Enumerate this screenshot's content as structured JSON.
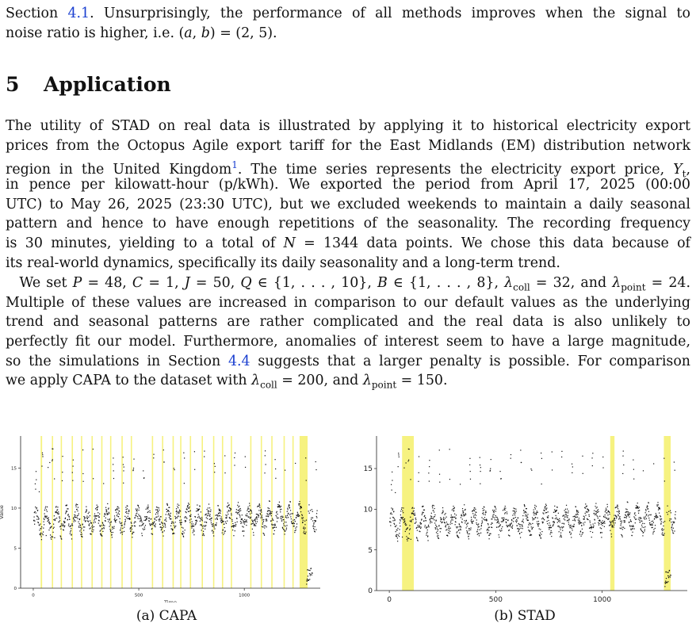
{
  "intro_lines": [
    [
      "Section ",
      {
        "ref": "4.1"
      },
      ". Unsurprisingly, the performance of all methods improves when the signal to"
    ],
    [
      "noise ratio is higher, i.e. (",
      {
        "v": "a"
      },
      ", ",
      {
        "v": "b"
      },
      ") = (2, 5)."
    ]
  ],
  "section": {
    "number": "5",
    "title": "Application"
  },
  "para1_lines": [
    [
      "The utility of STAD on real data is illustrated by applying it to historical electricity export"
    ],
    [
      "prices from the Octopus Agile export tariff for the East Midlands (EM) distribution network"
    ],
    [
      "region in the United Kingdom",
      {
        "sup": "1"
      },
      ". The time series represents the electricity export price, ",
      {
        "v": "Y"
      },
      {
        "sub": "t"
      },
      ","
    ],
    [
      "in pence per kilowatt-hour (p/kWh).  We exported the period from April 17, 2025 (00:00"
    ],
    [
      "UTC) to May 26, 2025 (23:30 UTC), but we excluded weekends to maintain a daily seasonal"
    ],
    [
      "pattern and hence to have enough repetitions of the seasonality.  The recording frequency"
    ],
    [
      "is 30 minutes, yielding to a total of ",
      {
        "v": "N"
      },
      " = 1344 data points.  We chose this data because of"
    ],
    [
      "its real-world dynamics, specifically its daily seasonality and a long-term trend."
    ]
  ],
  "para2_lines": [
    [
      " We set ",
      {
        "v": "P"
      },
      " = 48, ",
      {
        "v": "C"
      },
      " = 1, ",
      {
        "v": "J"
      },
      " = 50, ",
      {
        "v": "Q"
      },
      " ∈ {1, . . . , 10}, ",
      {
        "v": "B"
      },
      " ∈ {1, . . . , 8}, ",
      {
        "v": "λ"
      },
      {
        "sub": "coll"
      },
      " = 32, and ",
      {
        "v": "λ"
      },
      {
        "sub": "point"
      },
      " = 24."
    ],
    [
      "Multiple of these values are increased in comparison to our default values as the underlying"
    ],
    [
      "trend and seasonal patterns are rather complicated and the real data is also unlikely to"
    ],
    [
      "perfectly fit our model. Furthermore, anomalies of interest seem to have a large magnitude,"
    ],
    [
      "so the simulations in Section ",
      {
        "ref": "4.4"
      },
      " suggests that a larger penalty is possible. For comparison"
    ],
    [
      "we apply CAPA to the dataset with ",
      {
        "v": "λ"
      },
      {
        "sub": "coll"
      },
      " = 200, and ",
      {
        "v": "λ"
      },
      {
        "sub": "point"
      },
      " = 150."
    ]
  ],
  "figures": [
    {
      "caption": "(a) CAPA",
      "xlabel": "Time",
      "ylabel": "Value",
      "xticks": [
        0,
        500,
        1000
      ],
      "yticks": [
        0,
        5,
        10,
        15
      ],
      "xlim": [
        -60,
        1360
      ],
      "ylim": [
        0,
        19
      ],
      "highlight_color": "#f5f06a",
      "highlights": [
        [
          35,
          42
        ],
        [
          88,
          94
        ],
        [
          130,
          136
        ],
        [
          182,
          188
        ],
        [
          226,
          232
        ],
        [
          276,
          282
        ],
        [
          322,
          328
        ],
        [
          364,
          370
        ],
        [
          418,
          424
        ],
        [
          462,
          468
        ],
        [
          562,
          568
        ],
        [
          610,
          616
        ],
        [
          660,
          666
        ],
        [
          696,
          702
        ],
        [
          742,
          748
        ],
        [
          798,
          804
        ],
        [
          852,
          858
        ],
        [
          894,
          900
        ],
        [
          936,
          942
        ],
        [
          1028,
          1034
        ],
        [
          1078,
          1084
        ],
        [
          1128,
          1134
        ],
        [
          1186,
          1192
        ],
        [
          1228,
          1234
        ],
        [
          1262,
          1300
        ]
      ]
    },
    {
      "caption": "(b) STAD",
      "xlabel": "",
      "ylabel": "",
      "xticks": [
        0,
        500,
        1000
      ],
      "yticks": [
        0,
        5,
        10,
        15
      ],
      "xlim": [
        -60,
        1400
      ],
      "ylim": [
        0,
        19
      ],
      "highlight_color": "#f5f06a",
      "highlights": [
        [
          60,
          115
        ],
        [
          1038,
          1058
        ],
        [
          1290,
          1322
        ]
      ]
    }
  ]
}
